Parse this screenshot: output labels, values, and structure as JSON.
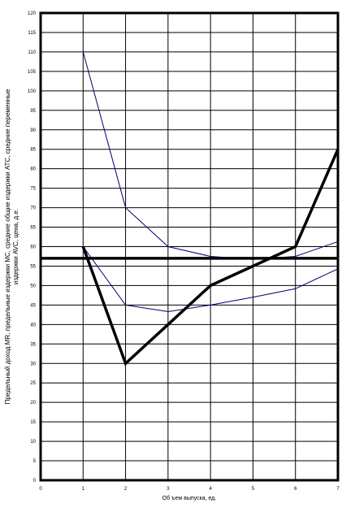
{
  "chart_data": {
    "type": "line",
    "title": "",
    "xlabel": "Об ъем выпуска, ед.",
    "ylabel_lines": [
      "Предельный доход MR, предельные издержки MC, средние общие издержки ATC, средние переменные",
      "издержки  AVC, цена, д.е."
    ],
    "xlim": [
      0,
      7
    ],
    "ylim": [
      0,
      120
    ],
    "x_ticks": [
      0,
      1,
      2,
      3,
      4,
      5,
      6,
      7
    ],
    "y_ticks": [
      0,
      5,
      10,
      15,
      20,
      25,
      30,
      35,
      40,
      45,
      50,
      55,
      60,
      65,
      70,
      75,
      80,
      85,
      90,
      95,
      100,
      105,
      110,
      115,
      120
    ],
    "grid": true,
    "series": [
      {
        "color": "#00006e",
        "weight": "thin",
        "points": [
          [
            1,
            110
          ],
          [
            2,
            70
          ],
          [
            3,
            60
          ],
          [
            4,
            57.5
          ],
          [
            5,
            56.7
          ],
          [
            6,
            57.5
          ],
          [
            7,
            61.3
          ]
        ]
      },
      {
        "color": "#00006e",
        "weight": "thin",
        "points": [
          [
            1,
            60
          ],
          [
            2,
            45
          ],
          [
            3,
            43.3
          ],
          [
            4,
            45
          ],
          [
            5,
            47
          ],
          [
            6,
            49.2
          ],
          [
            7,
            54.3
          ]
        ]
      },
      {
        "color": "#000000",
        "weight": "thick",
        "points": [
          [
            1,
            60
          ],
          [
            2,
            30
          ],
          [
            3,
            40
          ],
          [
            4,
            50
          ],
          [
            5,
            55
          ],
          [
            6,
            60
          ],
          [
            7,
            85
          ]
        ]
      },
      {
        "color": "#000000",
        "weight": "thick",
        "points": [
          [
            0,
            57
          ],
          [
            7,
            57
          ]
        ]
      }
    ]
  }
}
